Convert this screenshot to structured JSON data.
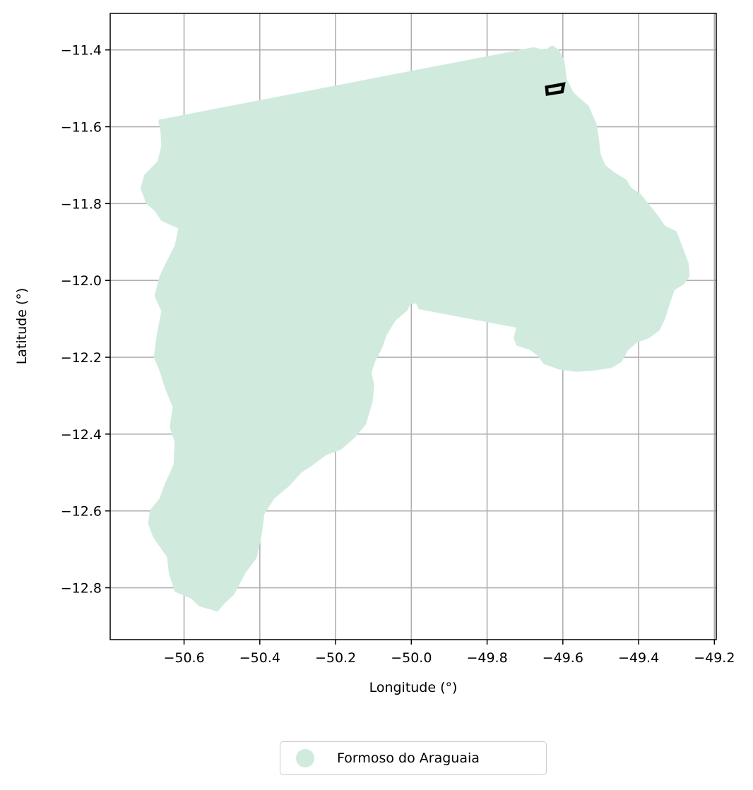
{
  "chart_data": {
    "type": "map",
    "xlabel": "Longitude (°)",
    "ylabel": "Latitude (°)",
    "xlim": [
      -50.795,
      -49.195
    ],
    "ylim": [
      -12.935,
      -11.305
    ],
    "x_ticks": [
      -50.6,
      -50.4,
      -50.2,
      -50.0,
      -49.8,
      -49.6,
      -49.4,
      -49.2
    ],
    "y_ticks": [
      -11.4,
      -11.6,
      -11.8,
      -12.0,
      -12.2,
      -12.4,
      -12.6,
      -12.8
    ],
    "x_tick_labels": [
      "−50.6",
      "−50.4",
      "−50.2",
      "−50.0",
      "−49.8",
      "−49.6",
      "−49.4",
      "−49.2"
    ],
    "y_tick_labels": [
      "−11.4",
      "−11.6",
      "−11.8",
      "−12.0",
      "−12.2",
      "−12.4",
      "−12.6",
      "−12.8"
    ],
    "grid": true,
    "legend_placement": "bottom-center, below axes",
    "region": {
      "name": "Formoso do Araguaia",
      "color": "#d0ebde",
      "outline": [
        [
          -50.668,
          -11.582
        ],
        [
          -49.677,
          -11.393
        ],
        [
          -49.648,
          -11.4
        ],
        [
          -49.628,
          -11.388
        ],
        [
          -49.61,
          -11.4
        ],
        [
          -49.596,
          -11.428
        ],
        [
          -49.59,
          -11.475
        ],
        [
          -49.572,
          -11.51
        ],
        [
          -49.556,
          -11.525
        ],
        [
          -49.532,
          -11.545
        ],
        [
          -49.522,
          -11.568
        ],
        [
          -49.511,
          -11.592
        ],
        [
          -49.505,
          -11.63
        ],
        [
          -49.5,
          -11.672
        ],
        [
          -49.488,
          -11.7
        ],
        [
          -49.465,
          -11.718
        ],
        [
          -49.432,
          -11.738
        ],
        [
          -49.42,
          -11.758
        ],
        [
          -49.395,
          -11.775
        ],
        [
          -49.378,
          -11.795
        ],
        [
          -49.35,
          -11.83
        ],
        [
          -49.33,
          -11.858
        ],
        [
          -49.3,
          -11.872
        ],
        [
          -49.285,
          -11.91
        ],
        [
          -49.268,
          -11.955
        ],
        [
          -49.265,
          -11.99
        ],
        [
          -49.28,
          -12.01
        ],
        [
          -49.305,
          -12.025
        ],
        [
          -49.318,
          -12.062
        ],
        [
          -49.33,
          -12.1
        ],
        [
          -49.345,
          -12.13
        ],
        [
          -49.372,
          -12.15
        ],
        [
          -49.405,
          -12.162
        ],
        [
          -49.428,
          -12.182
        ],
        [
          -49.445,
          -12.212
        ],
        [
          -49.472,
          -12.228
        ],
        [
          -49.522,
          -12.235
        ],
        [
          -49.565,
          -12.238
        ],
        [
          -49.61,
          -12.232
        ],
        [
          -49.65,
          -12.218
        ],
        [
          -49.668,
          -12.195
        ],
        [
          -49.688,
          -12.18
        ],
        [
          -49.722,
          -12.17
        ],
        [
          -49.73,
          -12.15
        ],
        [
          -49.723,
          -12.123
        ],
        [
          -49.98,
          -12.075
        ],
        [
          -49.988,
          -12.06
        ],
        [
          -50.002,
          -12.062
        ],
        [
          -50.01,
          -12.078
        ],
        [
          -50.042,
          -12.105
        ],
        [
          -50.065,
          -12.142
        ],
        [
          -50.078,
          -12.178
        ],
        [
          -50.095,
          -12.21
        ],
        [
          -50.105,
          -12.24
        ],
        [
          -50.098,
          -12.272
        ],
        [
          -50.102,
          -12.315
        ],
        [
          -50.12,
          -12.375
        ],
        [
          -50.15,
          -12.41
        ],
        [
          -50.185,
          -12.44
        ],
        [
          -50.225,
          -12.455
        ],
        [
          -50.262,
          -12.482
        ],
        [
          -50.29,
          -12.5
        ],
        [
          -50.322,
          -12.535
        ],
        [
          -50.362,
          -12.568
        ],
        [
          -50.388,
          -12.608
        ],
        [
          -50.395,
          -12.662
        ],
        [
          -50.408,
          -12.722
        ],
        [
          -50.438,
          -12.762
        ],
        [
          -50.468,
          -12.818
        ],
        [
          -50.492,
          -12.84
        ],
        [
          -50.512,
          -12.862
        ],
        [
          -50.56,
          -12.848
        ],
        [
          -50.582,
          -12.828
        ],
        [
          -50.625,
          -12.81
        ],
        [
          -50.64,
          -12.762
        ],
        [
          -50.645,
          -12.72
        ],
        [
          -50.682,
          -12.668
        ],
        [
          -50.695,
          -12.632
        ],
        [
          -50.69,
          -12.598
        ],
        [
          -50.665,
          -12.568
        ],
        [
          -50.65,
          -12.528
        ],
        [
          -50.628,
          -12.48
        ],
        [
          -50.625,
          -12.42
        ],
        [
          -50.638,
          -12.382
        ],
        [
          -50.63,
          -12.33
        ],
        [
          -50.65,
          -12.282
        ],
        [
          -50.665,
          -12.235
        ],
        [
          -50.68,
          -12.2
        ],
        [
          -50.672,
          -12.14
        ],
        [
          -50.66,
          -12.08
        ],
        [
          -50.678,
          -12.04
        ],
        [
          -50.665,
          -11.99
        ],
        [
          -50.65,
          -11.958
        ],
        [
          -50.625,
          -11.91
        ],
        [
          -50.615,
          -11.865
        ],
        [
          -50.66,
          -11.845
        ],
        [
          -50.678,
          -11.818
        ],
        [
          -50.7,
          -11.8
        ],
        [
          -50.715,
          -11.76
        ],
        [
          -50.705,
          -11.725
        ],
        [
          -50.67,
          -11.69
        ],
        [
          -50.66,
          -11.65
        ],
        [
          -50.662,
          -11.615
        ],
        [
          -50.668,
          -11.582
        ]
      ]
    },
    "marker": {
      "color": "#000000",
      "outline": [
        [
          -49.643,
          -11.497
        ],
        [
          -49.598,
          -11.489
        ],
        [
          -49.602,
          -11.509
        ],
        [
          -49.641,
          -11.515
        ]
      ]
    },
    "legend": [
      {
        "label": "Formoso do Araguaia",
        "color": "#d0ebde"
      }
    ]
  }
}
